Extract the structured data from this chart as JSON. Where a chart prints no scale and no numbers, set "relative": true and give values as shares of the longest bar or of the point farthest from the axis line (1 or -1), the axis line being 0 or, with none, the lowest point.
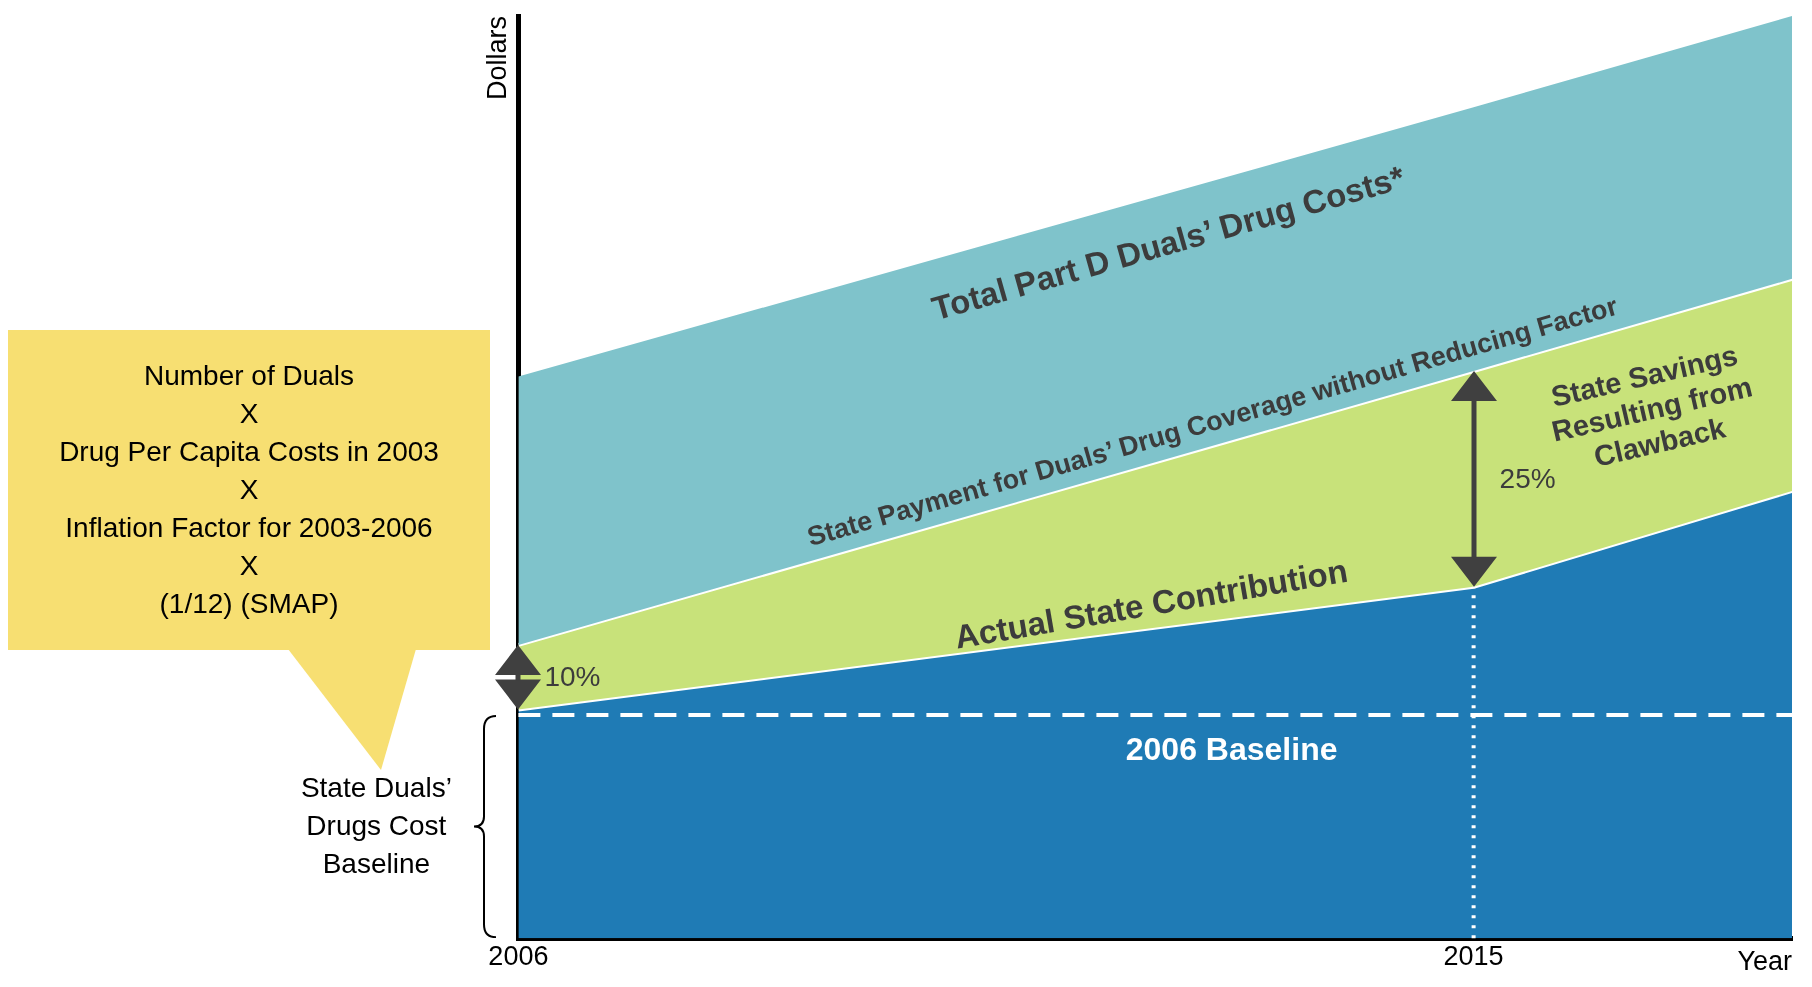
{
  "chart_data": {
    "type": "area",
    "relative": true,
    "ylabel": "Dollars",
    "xlabel": "Year",
    "x": [
      2006,
      2015,
      2018
    ],
    "xlim": [
      2006,
      2018
    ],
    "xticks": [
      2006,
      2015
    ],
    "series": [
      {
        "name": "Total Part D Duals’ Drug Costs*",
        "color": "#7fc3cb",
        "values": [
          0.609,
          0.901,
          1
        ]
      },
      {
        "name": "State Payment for Duals’ Drug Coverage without Reducing Factor",
        "color": "#c8e27a",
        "values": [
          0.318,
          0.615,
          0.715
        ]
      },
      {
        "name": "Actual State Contribution",
        "color": "#1f7bb5",
        "values": [
          0.248,
          0.381,
          0.485
        ]
      }
    ],
    "ref_lines": [
      {
        "axis": "y",
        "value": 0.242,
        "label": "2006 Baseline",
        "color": "#ffffff",
        "line_style": "dashed"
      },
      {
        "axis": "x",
        "value": 2015,
        "color": "#ffffff",
        "line_style": "dotted"
      }
    ],
    "annotations": [
      "Number of Duals\nX\nDrug Per Capita Costs in 2003\nX\nInflation Factor for 2003-2006\nX\n(1/12) (SMAP)",
      "State Duals’ Drugs Cost Baseline",
      "10%",
      "25%",
      "State Savings Resulting from Clawback"
    ]
  }
}
